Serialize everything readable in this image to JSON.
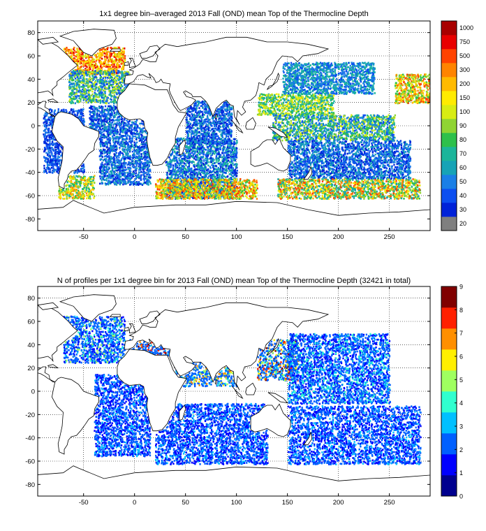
{
  "chart_data": [
    {
      "type": "heatmap",
      "title": "1x1 degree bin–averaged 2013 Fall (OND) mean Top of the Thermocline Depth",
      "xlabel": "",
      "ylabel": "",
      "xlim": [
        -95,
        290
      ],
      "ylim": [
        -90,
        90
      ],
      "x_ticks": [
        -50,
        0,
        50,
        100,
        150,
        200,
        250
      ],
      "y_ticks": [
        -80,
        -60,
        -40,
        -20,
        0,
        20,
        40,
        60,
        80
      ],
      "grid": true,
      "colorbar": {
        "labels": [
          "20",
          "30",
          "40",
          "50",
          "60",
          "70",
          "80",
          "90",
          "100",
          "150",
          "200",
          "300",
          "500",
          "750",
          "1000"
        ],
        "colors": [
          "#7f7f7f",
          "#0022d8",
          "#0c4ff0",
          "#1a7fe6",
          "#16a3b6",
          "#1bb59a",
          "#2dc04b",
          "#8fd433",
          "#d8ec13",
          "#ffeb00",
          "#ffba00",
          "#ff8400",
          "#ff4300",
          "#e80000",
          "#a80000"
        ]
      },
      "regions": [
        {
          "lon": [
            -70,
            -10
          ],
          "lat": [
            45,
            68
          ],
          "level": [
            8,
            13
          ]
        },
        {
          "lon": [
            -65,
            -5
          ],
          "lat": [
            20,
            48
          ],
          "level": [
            2,
            8
          ]
        },
        {
          "lon": [
            -45,
            15
          ],
          "lat": [
            -10,
            18
          ],
          "level": [
            1,
            4
          ]
        },
        {
          "lon": [
            -35,
            15
          ],
          "lat": [
            -50,
            -10
          ],
          "level": [
            1,
            4
          ]
        },
        {
          "lon": [
            -75,
            -40
          ],
          "lat": [
            -62,
            -42
          ],
          "level": [
            5,
            11
          ]
        },
        {
          "lon": [
            30,
            100
          ],
          "lat": [
            -62,
            -10
          ],
          "level": [
            1,
            5
          ]
        },
        {
          "lon": [
            50,
            95
          ],
          "lat": [
            -15,
            22
          ],
          "level": [
            1,
            4
          ]
        },
        {
          "lon": [
            20,
            120
          ],
          "lat": [
            -62,
            -45
          ],
          "level": [
            6,
            12
          ]
        },
        {
          "lon": [
            120,
            195
          ],
          "lat": [
            10,
            28
          ],
          "level": [
            4,
            9
          ]
        },
        {
          "lon": [
            145,
            235
          ],
          "lat": [
            28,
            55
          ],
          "level": [
            2,
            5
          ]
        },
        {
          "lon": [
            135,
            255
          ],
          "lat": [
            -12,
            10
          ],
          "level": [
            2,
            8
          ]
        },
        {
          "lon": [
            150,
            270
          ],
          "lat": [
            -45,
            -12
          ],
          "level": [
            1,
            4
          ]
        },
        {
          "lon": [
            140,
            280
          ],
          "lat": [
            -62,
            -45
          ],
          "level": [
            4,
            12
          ]
        },
        {
          "lon": [
            -90,
            -50
          ],
          "lat": [
            -40,
            15
          ],
          "level": [
            1,
            3
          ]
        },
        {
          "lon": [
            255,
            290
          ],
          "lat": [
            20,
            45
          ],
          "level": [
            6,
            12
          ]
        }
      ]
    },
    {
      "type": "heatmap",
      "title": "N of profiles per 1x1 degree bin for 2013 Fall (OND) mean Top of the Thermocline Depth  (32421 in total)",
      "xlabel": "",
      "ylabel": "",
      "xlim": [
        -95,
        290
      ],
      "ylim": [
        -90,
        90
      ],
      "x_ticks": [
        -50,
        0,
        50,
        100,
        150,
        200,
        250
      ],
      "y_ticks": [
        -80,
        -60,
        -40,
        -20,
        0,
        20,
        40,
        60,
        80
      ],
      "grid": true,
      "colorbar": {
        "labels": [
          "0",
          "1",
          "2",
          "3",
          "4",
          "5",
          "6",
          "7",
          "8",
          "9"
        ],
        "range": [
          0,
          9
        ],
        "colors": [
          "#00008f",
          "#0000ff",
          "#0060ff",
          "#00c0ff",
          "#30ffcf",
          "#9fff60",
          "#ffef00",
          "#ff8f00",
          "#ff2000",
          "#800000"
        ]
      },
      "regions": [
        {
          "lon": [
            -70,
            -10
          ],
          "lat": [
            25,
            65
          ],
          "level": [
            1,
            5
          ]
        },
        {
          "lon": [
            -40,
            15
          ],
          "lat": [
            -55,
            15
          ],
          "level": [
            1,
            3
          ]
        },
        {
          "lon": [
            20,
            130
          ],
          "lat": [
            -62,
            -10
          ],
          "level": [
            1,
            3
          ]
        },
        {
          "lon": [
            120,
            160
          ],
          "lat": [
            10,
            45
          ],
          "level": [
            3,
            9
          ]
        },
        {
          "lon": [
            150,
            250
          ],
          "lat": [
            -10,
            50
          ],
          "level": [
            1,
            4
          ]
        },
        {
          "lon": [
            150,
            280
          ],
          "lat": [
            -62,
            -12
          ],
          "level": [
            1,
            3
          ]
        },
        {
          "lon": [
            -5,
            40
          ],
          "lat": [
            30,
            45
          ],
          "level": [
            2,
            9
          ]
        },
        {
          "lon": [
            40,
            100
          ],
          "lat": [
            5,
            25
          ],
          "level": [
            2,
            7
          ]
        }
      ]
    }
  ]
}
